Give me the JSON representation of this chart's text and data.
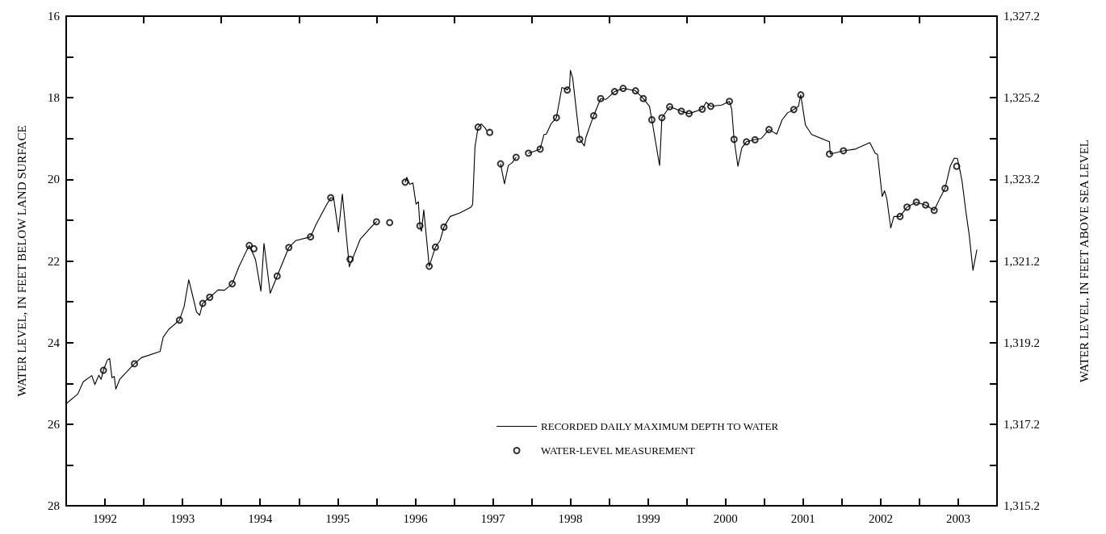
{
  "chart_data": {
    "type": "line",
    "ylabel": "WATER LEVEL, IN FEET BELOW LAND SURFACE",
    "y2label": "WATER LEVEL, IN FEET ABOVE SEA LEVEL",
    "xlim": [
      1992,
      2004
    ],
    "xticks": [
      {
        "value": 1993,
        "label": null
      },
      {
        "value": 1994,
        "label": null
      },
      {
        "value": 1995,
        "label": null
      },
      {
        "value": 1996,
        "label": null
      },
      {
        "value": 1997,
        "label": null
      },
      {
        "value": 1998,
        "label": null
      },
      {
        "value": 1999,
        "label": null
      },
      {
        "value": 2000,
        "label": null
      },
      {
        "value": 2001,
        "label": null
      },
      {
        "value": 2002,
        "label": null
      },
      {
        "value": 2003,
        "label": null
      },
      {
        "value": 1992.5,
        "label": "1992"
      },
      {
        "value": 1993.5,
        "label": "1993"
      },
      {
        "value": 1994.5,
        "label": "1994"
      },
      {
        "value": 1995.5,
        "label": "1995"
      },
      {
        "value": 1996.5,
        "label": "1996"
      },
      {
        "value": 1997.5,
        "label": "1997"
      },
      {
        "value": 1998.5,
        "label": "1998"
      },
      {
        "value": 1999.5,
        "label": "1999"
      },
      {
        "value": 2000.5,
        "label": "2000"
      },
      {
        "value": 2001.5,
        "label": "2001"
      },
      {
        "value": 2002.5,
        "label": "2002"
      },
      {
        "value": 2003.5,
        "label": "2003"
      }
    ],
    "ylim": [
      28,
      16
    ],
    "yticks": [
      16,
      {
        "value": 17,
        "label": null
      },
      18,
      {
        "value": 19,
        "label": null
      },
      20,
      {
        "value": 21,
        "label": null
      },
      22,
      {
        "value": 23,
        "label": null
      },
      24,
      {
        "value": 25,
        "label": null
      },
      26,
      {
        "value": 27,
        "label": null
      },
      28
    ],
    "y2lim": [
      1315.2,
      1327.2
    ],
    "y2ticks": [
      {
        "value": 1315.2,
        "label": "1,315.2"
      },
      {
        "value": 1316.2,
        "label": null
      },
      {
        "value": 1317.2,
        "label": "1,317.2"
      },
      {
        "value": 1318.2,
        "label": null
      },
      {
        "value": 1319.2,
        "label": "1,319.2"
      },
      {
        "value": 1320.2,
        "label": null
      },
      {
        "value": 1321.2,
        "label": "1,321.2"
      },
      {
        "value": 1322.2,
        "label": null
      },
      {
        "value": 1323.2,
        "label": "1,323.2"
      },
      {
        "value": 1324.2,
        "label": null
      },
      {
        "value": 1325.2,
        "label": "1,325.2"
      },
      {
        "value": 1326.2,
        "label": null
      },
      {
        "value": 1327.2,
        "label": "1,327.2"
      }
    ],
    "grid": false,
    "legend": "bottom right",
    "line_style": "solid",
    "series": [
      {
        "name": "RECORDED DAILY MAXIMUM DEPTH TO WATER",
        "color": "#000000",
        "x": [
          1992.0,
          1992.15,
          1992.22,
          1992.33,
          1992.37,
          1992.42,
          1992.45,
          1992.48,
          1992.53,
          1992.56,
          1992.59,
          1992.62,
          1992.64,
          1992.69,
          1992.88,
          1992.97,
          1993.21,
          1993.25,
          1993.32,
          1993.46,
          1993.52,
          1993.58,
          1993.63,
          1993.68,
          1993.72,
          1993.76,
          1993.85,
          1993.96,
          1994.04,
          1994.14,
          1994.23,
          1994.32,
          1994.36,
          1994.44,
          1994.51,
          1994.55,
          1994.63,
          1994.72,
          1994.87,
          1994.96,
          1995.15,
          1995.22,
          1995.34,
          1995.41,
          1995.45,
          1995.51,
          1995.56,
          1995.65,
          1995.79,
          1995.93,
          1996.0,
          1996.25,
          1996.37,
          1996.39,
          1996.43,
          1996.47,
          1996.51,
          1996.54,
          1996.56,
          1996.58,
          1996.61,
          1996.68,
          1996.76,
          1996.82,
          1996.87,
          1996.95,
          1997.08,
          1997.22,
          1997.24,
          1997.27,
          1997.29,
          1997.31,
          1997.35,
          1997.4,
          1997.42,
          1997.5,
          1997.6,
          1997.65,
          1997.7,
          1997.75,
          1997.8,
          1997.88,
          1997.96,
          1998.11,
          1998.16,
          1998.19,
          1998.25,
          1998.32,
          1998.39,
          1998.44,
          1998.46,
          1998.49,
          1998.5,
          1998.53,
          1998.58,
          1998.62,
          1998.68,
          1998.7,
          1998.8,
          1998.89,
          1998.96,
          1999.07,
          1999.18,
          1999.34,
          1999.44,
          1999.52,
          1999.55,
          1999.65,
          1999.68,
          1999.78,
          1999.93,
          2000.03,
          2000.2,
          2000.25,
          2000.31,
          2000.45,
          2000.55,
          2000.58,
          2000.61,
          2000.66,
          2000.71,
          2000.77,
          2000.89,
          2000.96,
          2001.06,
          2001.16,
          2001.23,
          2001.3,
          2001.38,
          2001.44,
          2001.47,
          2001.53,
          2001.61,
          2001.84,
          2001.85,
          2002.02,
          2002.17,
          2002.36,
          2002.43,
          2002.46,
          2002.52,
          2002.55,
          2002.58,
          2002.63,
          2002.67,
          2002.75,
          2002.84,
          2002.96,
          2003.08,
          2003.19,
          2003.26,
          2003.33,
          2003.4,
          2003.45,
          2003.49,
          2003.52,
          2003.55,
          2003.6,
          2003.64,
          2003.67,
          2003.69,
          2003.74
        ],
        "values": [
          25.5,
          25.26,
          24.96,
          24.81,
          25.03,
          24.8,
          24.9,
          24.68,
          24.43,
          24.39,
          24.86,
          24.83,
          25.14,
          24.9,
          24.52,
          24.37,
          24.22,
          23.87,
          23.68,
          23.45,
          23.12,
          22.46,
          22.85,
          23.25,
          23.33,
          23.04,
          22.89,
          22.71,
          22.72,
          22.56,
          22.13,
          21.77,
          21.62,
          21.96,
          22.74,
          21.57,
          22.79,
          22.37,
          21.67,
          21.5,
          21.41,
          21.11,
          20.68,
          20.45,
          20.48,
          21.29,
          20.36,
          22.14,
          21.47,
          21.17,
          21.04,
          null,
          20.07,
          19.95,
          20.12,
          20.09,
          20.61,
          20.55,
          21.14,
          21.27,
          20.75,
          22.13,
          21.66,
          21.5,
          21.17,
          20.91,
          20.82,
          20.68,
          20.61,
          19.2,
          18.97,
          18.72,
          18.64,
          18.74,
          18.8,
          null,
          19.62,
          20.11,
          19.66,
          19.59,
          19.46,
          null,
          19.36,
          19.26,
          18.9,
          18.89,
          18.64,
          18.49,
          17.75,
          17.78,
          17.81,
          17.72,
          17.33,
          17.52,
          18.37,
          19.02,
          19.18,
          18.97,
          18.44,
          18.02,
          18.04,
          17.85,
          17.77,
          17.83,
          18.02,
          18.21,
          18.54,
          19.66,
          18.49,
          18.22,
          18.33,
          18.39,
          18.28,
          18.11,
          18.21,
          18.18,
          18.09,
          18.28,
          19.02,
          19.68,
          19.23,
          19.08,
          19.02,
          19.0,
          18.78,
          18.89,
          18.54,
          18.37,
          18.29,
          18.21,
          17.93,
          18.67,
          18.9,
          19.08,
          19.38,
          19.3,
          19.26,
          19.1,
          19.36,
          19.39,
          20.42,
          20.28,
          20.48,
          21.19,
          20.91,
          20.91,
          20.68,
          20.56,
          20.63,
          20.76,
          20.48,
          20.22,
          19.66,
          19.48,
          19.49,
          19.76,
          20.05,
          20.81,
          21.34,
          21.87,
          22.23,
          21.73
        ]
      },
      {
        "name": "WATER-LEVEL MEASUREMENT",
        "type": "scatter",
        "color": "#000000",
        "marker": "circle",
        "x": [
          1992.48,
          1992.88,
          1993.46,
          1993.76,
          1993.85,
          1994.14,
          1994.36,
          1994.42,
          1994.72,
          1994.87,
          1995.15,
          1995.41,
          1995.66,
          1996.0,
          1996.17,
          1996.37,
          1996.56,
          1996.68,
          1996.76,
          1996.87,
          1997.31,
          1997.46,
          1997.6,
          1997.8,
          1997.96,
          1998.11,
          1998.32,
          1998.46,
          1998.62,
          1998.8,
          1998.89,
          1999.07,
          1999.18,
          1999.34,
          1999.44,
          1999.55,
          1999.68,
          1999.78,
          1999.93,
          2000.03,
          2000.2,
          2000.31,
          2000.55,
          2000.61,
          2000.77,
          2000.88,
          2001.06,
          2001.38,
          2001.47,
          2001.84,
          2002.02,
          2002.75,
          2002.84,
          2002.96,
          2003.08,
          2003.19,
          2003.33,
          2003.48
        ],
        "values": [
          24.68,
          24.52,
          23.45,
          23.04,
          22.89,
          22.56,
          21.62,
          21.7,
          22.37,
          21.67,
          21.41,
          20.45,
          21.96,
          21.04,
          21.06,
          20.07,
          21.14,
          22.13,
          21.66,
          21.17,
          18.72,
          18.85,
          19.62,
          19.46,
          19.36,
          19.26,
          18.49,
          17.81,
          19.02,
          18.44,
          18.02,
          17.85,
          17.77,
          17.83,
          18.02,
          18.54,
          18.49,
          18.22,
          18.33,
          18.39,
          18.28,
          18.21,
          18.09,
          19.02,
          19.08,
          19.03,
          18.78,
          18.29,
          17.93,
          19.38,
          19.3,
          20.91,
          20.68,
          20.56,
          20.63,
          20.76,
          20.22,
          19.68
        ]
      }
    ]
  }
}
